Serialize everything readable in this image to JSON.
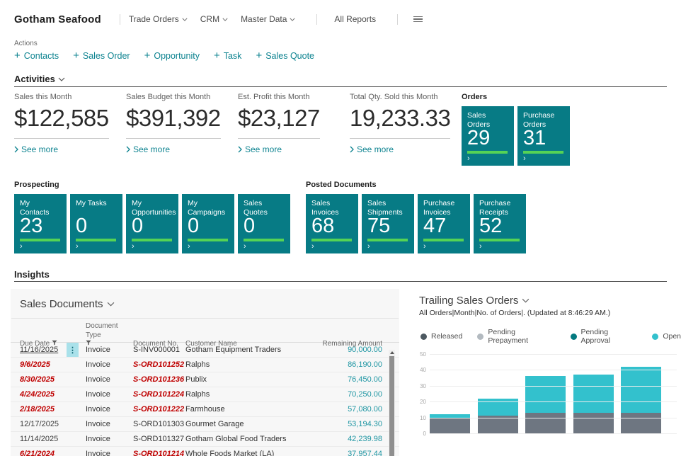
{
  "topbar": {
    "app_title": "Gotham Seafood",
    "nav_items": [
      "Trade Orders",
      "CRM",
      "Master Data",
      "All Reports"
    ]
  },
  "actions": {
    "label": "Actions",
    "links": [
      "Contacts",
      "Sales Order",
      "Opportunity",
      "Task",
      "Sales Quote"
    ]
  },
  "activities": {
    "title": "Activities",
    "see_more_label": "See more",
    "kpis": [
      {
        "label": "Sales this Month",
        "value": "$122,585"
      },
      {
        "label": "Sales Budget this Month",
        "value": "$391,392"
      },
      {
        "label": "Est. Profit this Month",
        "value": "$23,127"
      },
      {
        "label": "Total Qty. Sold this Month",
        "value": "19,233.33"
      }
    ],
    "cue_groups": [
      {
        "title": "Orders",
        "tiles": [
          {
            "label": "Sales Orders",
            "value": "29"
          },
          {
            "label": "Purchase Orders",
            "value": "31"
          }
        ]
      },
      {
        "title": "Prospecting",
        "tiles": [
          {
            "label": "My Contacts",
            "value": "23"
          },
          {
            "label": "My Tasks",
            "value": "0"
          },
          {
            "label": "My Opportunities",
            "value": "0"
          },
          {
            "label": "My Campaigns",
            "value": "0"
          },
          {
            "label": "Sales Quotes",
            "value": "0"
          }
        ]
      },
      {
        "title": "Posted Documents",
        "tiles": [
          {
            "label": "Sales Invoices",
            "value": "68"
          },
          {
            "label": "Sales Shipments",
            "value": "75"
          },
          {
            "label": "Purchase Invoices",
            "value": "47"
          },
          {
            "label": "Purchase Receipts",
            "value": "52"
          }
        ]
      }
    ]
  },
  "insights": {
    "title": "Insights",
    "sales_documents": {
      "title": "Sales Documents",
      "columns": [
        "Due Date",
        "Document Type",
        "Document No.",
        "Customer Name",
        "Remaining Amount"
      ],
      "filtered_columns": [
        "Due Date",
        "Document Type"
      ],
      "rows": [
        {
          "due_date": "11/16/2025",
          "overdue": false,
          "selected": true,
          "document_type": "Invoice",
          "document_no": "S-INV000001",
          "customer_name": "Gotham Equipment Traders",
          "remaining_amount": "90,000.00"
        },
        {
          "due_date": "9/6/2025",
          "overdue": true,
          "selected": false,
          "document_type": "Invoice",
          "document_no": "S-ORD101252",
          "customer_name": "Ralphs",
          "remaining_amount": "86,190.00"
        },
        {
          "due_date": "8/30/2025",
          "overdue": true,
          "selected": false,
          "document_type": "Invoice",
          "document_no": "S-ORD101236",
          "customer_name": "Publix",
          "remaining_amount": "76,450.00"
        },
        {
          "due_date": "4/24/2025",
          "overdue": true,
          "selected": false,
          "document_type": "Invoice",
          "document_no": "S-ORD101224",
          "customer_name": "Ralphs",
          "remaining_amount": "70,250.00"
        },
        {
          "due_date": "2/18/2025",
          "overdue": true,
          "selected": false,
          "document_type": "Invoice",
          "document_no": "S-ORD101222",
          "customer_name": "Farmhouse",
          "remaining_amount": "57,080.00"
        },
        {
          "due_date": "12/17/2025",
          "overdue": false,
          "selected": false,
          "document_type": "Invoice",
          "document_no": "S-ORD101303",
          "customer_name": "Gourmet Garage",
          "remaining_amount": "53,194.30"
        },
        {
          "due_date": "11/14/2025",
          "overdue": false,
          "selected": false,
          "document_type": "Invoice",
          "document_no": "S-ORD101327",
          "customer_name": "Gotham Global Food Traders",
          "remaining_amount": "42,239.98"
        },
        {
          "due_date": "6/21/2024",
          "overdue": true,
          "selected": false,
          "document_type": "Invoice",
          "document_no": "S-ORD101214",
          "customer_name": "Whole Foods Market (LA)",
          "remaining_amount": "37,957.44"
        }
      ]
    }
  },
  "chart_data": {
    "type": "bar",
    "stacked": true,
    "title": "Trailing Sales Orders",
    "subtitle": "All Orders|Month|No. of Orders|. (Updated at  8:46:29 AM.)",
    "legend_position": "top",
    "grid": true,
    "ylim": [
      0,
      50
    ],
    "yticks": [
      0,
      10,
      20,
      30,
      40,
      50
    ],
    "legend": [
      {
        "name": "Released",
        "color": "#4d5961"
      },
      {
        "name": "Pending Prepayment",
        "color": "#b3bac0"
      },
      {
        "name": "Pending Approval",
        "color": "#047a80"
      },
      {
        "name": "Open",
        "color": "#33c1cd"
      }
    ],
    "series": [
      {
        "name": "Released",
        "color": "#6e7681",
        "values": [
          10,
          11,
          13,
          13,
          13
        ]
      },
      {
        "name": "Pending Prepayment",
        "color": "#b3bac0",
        "values": [
          0,
          0,
          0,
          0,
          0
        ]
      },
      {
        "name": "Pending Approval",
        "color": "#047a80",
        "values": [
          0,
          0,
          0,
          0,
          0
        ]
      },
      {
        "name": "Open",
        "color": "#33c1cd",
        "values": [
          2,
          11,
          23,
          24,
          29
        ]
      }
    ],
    "totals": [
      12,
      22,
      36,
      37,
      42
    ]
  },
  "colors": {
    "accent_link_teal": "#0d8390",
    "tile_teal": "#077b85",
    "tile_bar_green": "#55d355",
    "amount_teal": "#1f96a3",
    "overdue_red": "#bf0000",
    "selected_cell_cyan": "#a9e1ea"
  }
}
